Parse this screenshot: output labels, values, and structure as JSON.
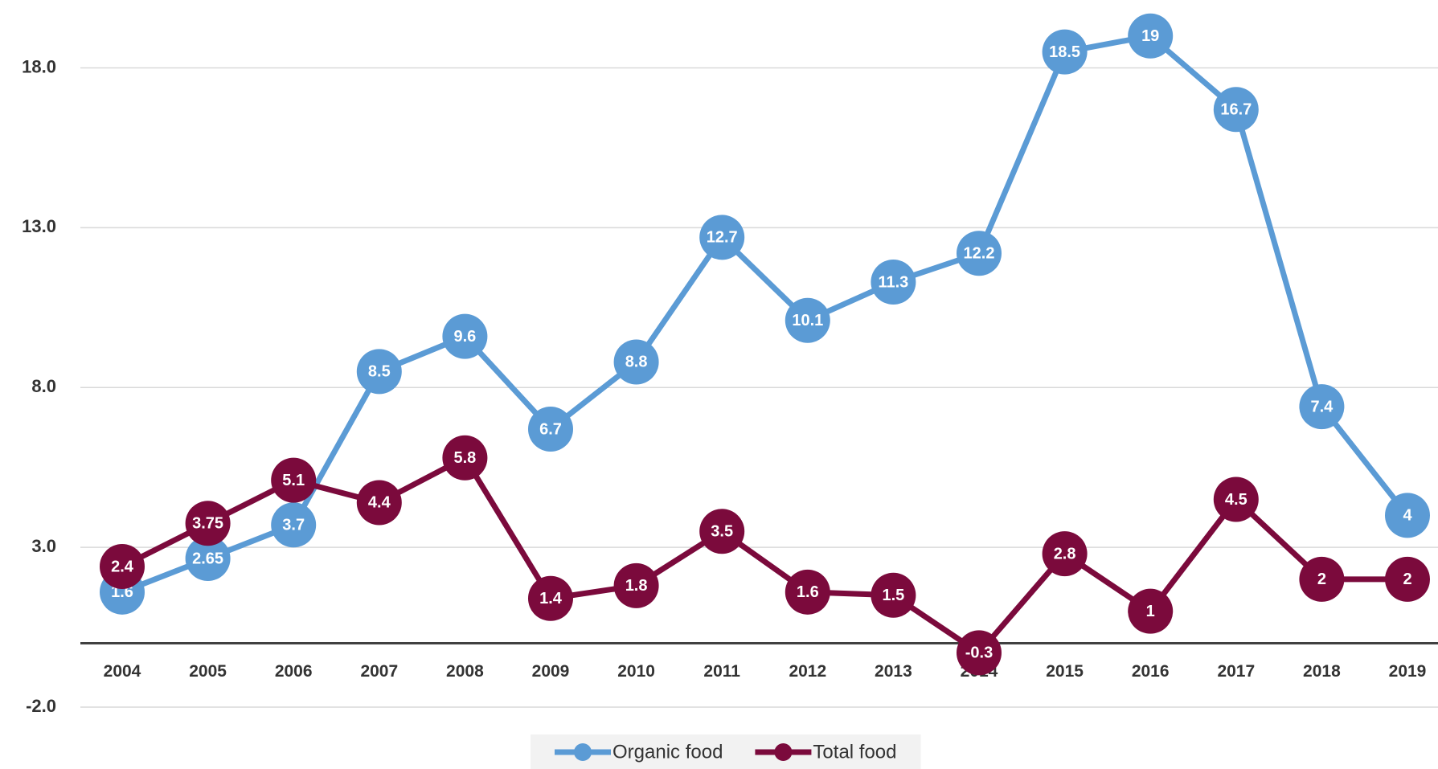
{
  "chart_data": {
    "type": "line",
    "categories": [
      "2004",
      "2005",
      "2006",
      "2007",
      "2008",
      "2009",
      "2010",
      "2011",
      "2012",
      "2013",
      "2014",
      "2015",
      "2016",
      "2017",
      "2018",
      "2019"
    ],
    "series": [
      {
        "name": "Organic food",
        "color": "#5b9bd5",
        "values": [
          1.6,
          2.65,
          3.7,
          8.5,
          9.6,
          6.7,
          8.8,
          12.7,
          10.1,
          11.3,
          12.2,
          18.5,
          19,
          16.7,
          7.4,
          4
        ]
      },
      {
        "name": "Total food",
        "color": "#7b0a3c",
        "values": [
          2.4,
          3.75,
          5.1,
          4.4,
          5.8,
          1.4,
          1.8,
          3.5,
          1.6,
          1.5,
          -0.3,
          2.8,
          1,
          4.5,
          2,
          2
        ]
      }
    ],
    "ylim": [
      -2,
      20
    ],
    "yticks": [
      {
        "value": -2,
        "label": "-2.0"
      },
      {
        "value": 3,
        "label": "3.0"
      },
      {
        "value": 8,
        "label": "8.0"
      },
      {
        "value": 13,
        "label": "13.0"
      },
      {
        "value": 18,
        "label": "18.0"
      }
    ],
    "grid": true,
    "legend": "bottom"
  }
}
